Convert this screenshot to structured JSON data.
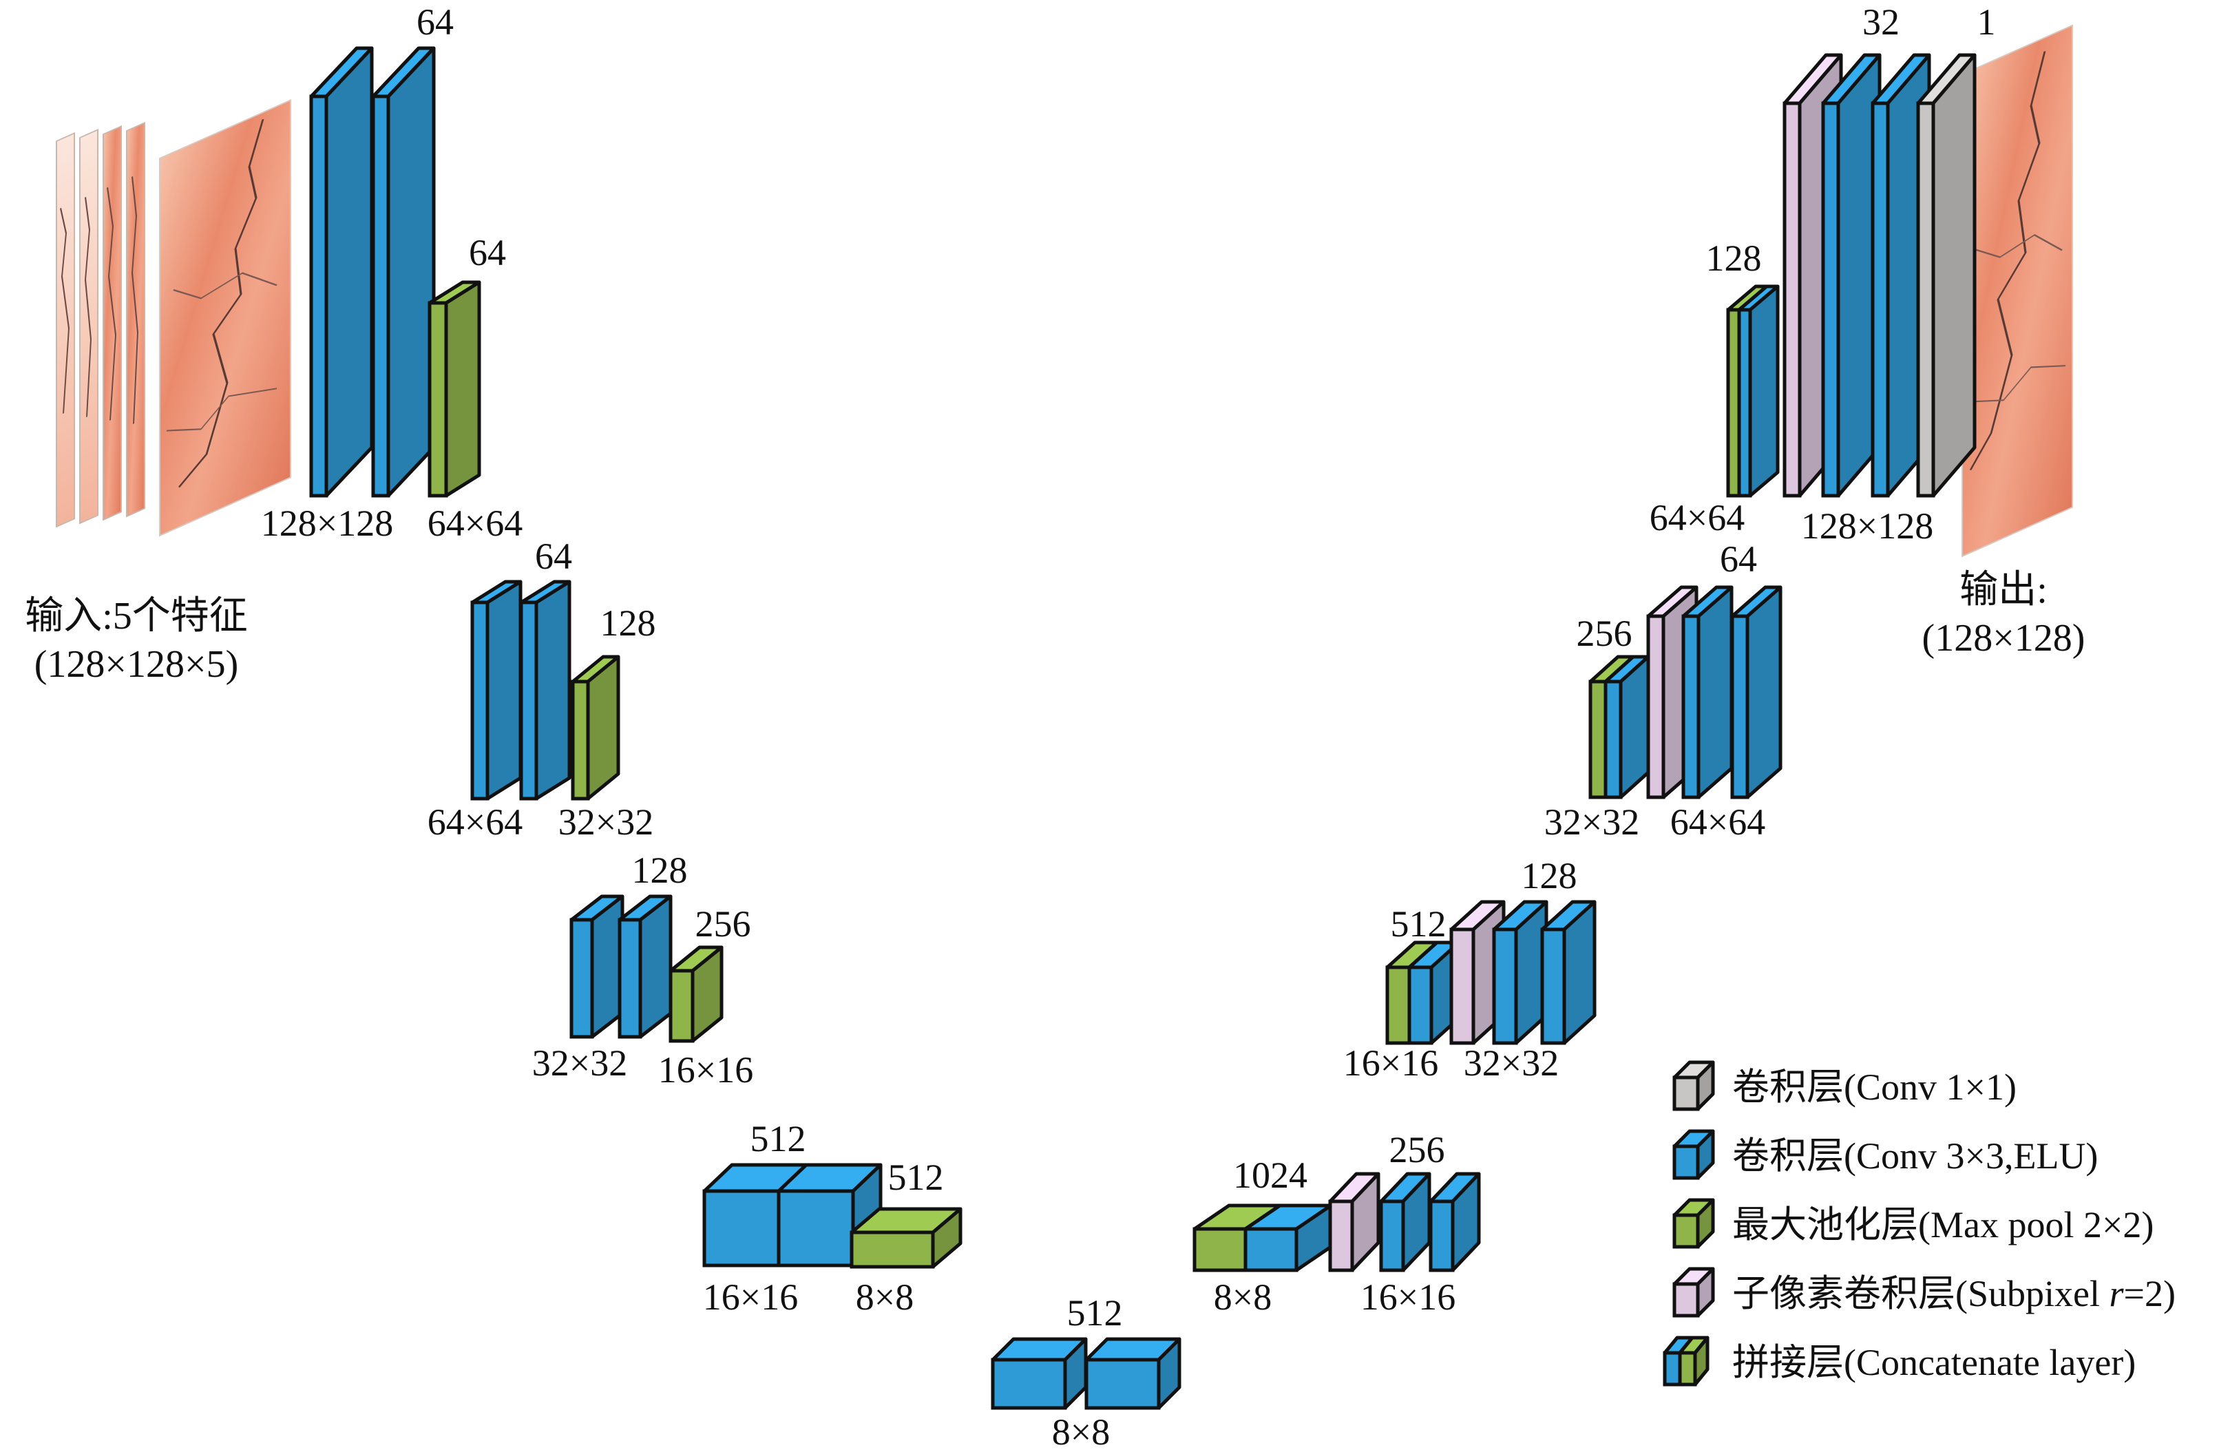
{
  "colors": {
    "conv3x3": "#2e9bd6",
    "maxpool": "#8fb54a",
    "subpixel": "#dcc7de",
    "conv1x1": "#c8c6c4",
    "outline": "#111111"
  },
  "input": {
    "caption_line1": "输入:5个特征",
    "caption_line2": "(128×128×5)"
  },
  "output": {
    "caption_line1": "输出:",
    "caption_line2": "(128×128)"
  },
  "labels": {
    "enc1_ch": "64",
    "enc1_pool_ch": "64",
    "enc1_size": "128×128",
    "enc1_pool_size": "64×64",
    "enc2_ch": "64",
    "enc2_pool_ch": "128",
    "enc2_size": "64×64",
    "enc2_pool_size": "32×32",
    "enc3_ch": "128",
    "enc3_pool_ch": "256",
    "enc3_size": "32×32",
    "enc3_pool_size": "16×16",
    "enc4_ch": "512",
    "enc4_pool_ch": "512",
    "enc4_size": "16×16",
    "enc4_pool_size": "8×8",
    "bottom_ch": "512",
    "bottom_size": "8×8",
    "dec4_cat_ch": "1024",
    "dec4_ch": "256",
    "dec4_cat_size": "8×8",
    "dec4_size": "16×16",
    "dec3_cat_ch": "512",
    "dec3_ch": "128",
    "dec3_cat_size": "16×16",
    "dec3_size": "32×32",
    "dec2_cat_ch": "256",
    "dec2_ch": "64",
    "dec2_cat_size": "32×32",
    "dec2_size": "64×64",
    "dec1_cat_ch": "128",
    "dec1_ch": "32",
    "dec1_out_ch": "1",
    "dec1_cat_size": "64×64",
    "dec1_size": "128×128"
  },
  "legend": [
    {
      "key": "conv1x1",
      "label": "卷积层(Conv 1×1)"
    },
    {
      "key": "conv3x3",
      "label": "卷积层(Conv 3×3,ELU)"
    },
    {
      "key": "maxpool",
      "label": "最大池化层(Max pool 2×2)"
    },
    {
      "key": "subpixel",
      "label_prefix": "子像素卷积层(Subpixel ",
      "label_italic": "r",
      "label_suffix": "=2)"
    },
    {
      "key": "concat",
      "label": "拼接层(Concatenate layer)"
    }
  ]
}
